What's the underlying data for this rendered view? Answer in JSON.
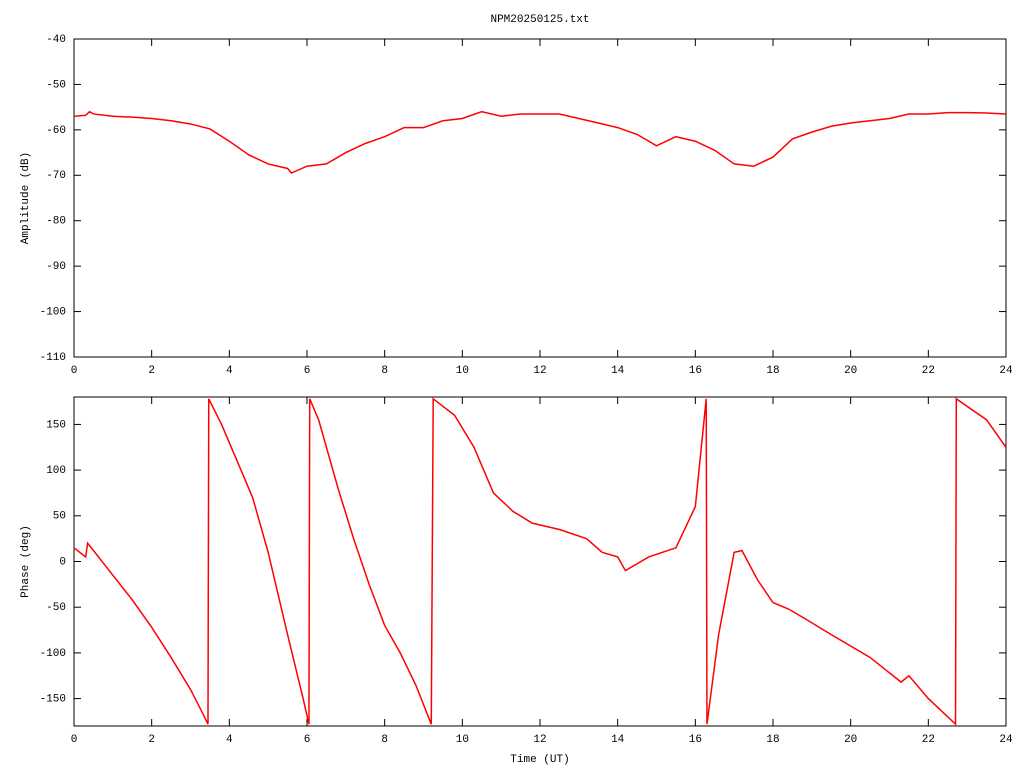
{
  "chart_data": [
    {
      "type": "line",
      "title": "NPM20250125.txt",
      "ylabel": "Amplitude (dB)",
      "color": "#ff0000",
      "xlim": [
        0,
        24
      ],
      "xticks": [
        0,
        2,
        4,
        6,
        8,
        10,
        12,
        14,
        16,
        18,
        20,
        22,
        24
      ],
      "ylim": [
        -110,
        -40
      ],
      "yticks": [
        -110,
        -100,
        -90,
        -80,
        -70,
        -60,
        -50,
        -40
      ],
      "x": [
        0,
        0.3,
        0.4,
        0.5,
        1,
        1.5,
        2,
        2.5,
        3,
        3.5,
        4,
        4.5,
        5,
        5.5,
        5.6,
        6,
        6.5,
        7,
        7.5,
        8,
        8.5,
        9,
        9.5,
        10,
        10.5,
        11,
        11.5,
        12,
        12.5,
        13,
        13.5,
        14,
        14.5,
        15,
        15.5,
        16,
        16.5,
        17,
        17.5,
        18,
        18.5,
        19,
        19.5,
        20,
        20.5,
        21,
        21.5,
        22,
        22.5,
        23,
        23.5,
        24
      ],
      "values": [
        -57,
        -56.8,
        -56,
        -56.5,
        -57,
        -57.2,
        -57.5,
        -58,
        -58.7,
        -59.8,
        -62.5,
        -65.5,
        -67.5,
        -68.5,
        -69.5,
        -68,
        -67.5,
        -65,
        -63,
        -61.5,
        -59.5,
        -59.5,
        -58,
        -57.5,
        -56,
        -57,
        -56.5,
        -56.5,
        -56.5,
        -57.5,
        -58.5,
        -59.5,
        -61,
        -63.5,
        -61.5,
        -62.5,
        -64.5,
        -67.5,
        -68,
        -66,
        -62,
        -60.5,
        -59.2,
        -58.5,
        -58,
        -57.5,
        -56.5,
        -56.5,
        -56.2,
        -56.2,
        -56.3,
        -56.5
      ]
    },
    {
      "type": "line",
      "xlabel": "Time (UT)",
      "ylabel": "Phase (deg)",
      "color": "#ff0000",
      "xlim": [
        0,
        24
      ],
      "xticks": [
        0,
        2,
        4,
        6,
        8,
        10,
        12,
        14,
        16,
        18,
        20,
        22,
        24
      ],
      "ylim": [
        -180,
        180
      ],
      "yticks": [
        -150,
        -100,
        -50,
        0,
        50,
        100,
        150
      ],
      "x": [
        0,
        0.3,
        0.35,
        0.5,
        1,
        1.5,
        2,
        2.5,
        3,
        3.3,
        3.45,
        3.47,
        3.8,
        4.2,
        4.6,
        5,
        5.5,
        5.9,
        6.05,
        6.07,
        6.3,
        6.8,
        7.2,
        7.6,
        8,
        8.4,
        8.8,
        9.2,
        9.25,
        9.8,
        10.3,
        10.8,
        11.3,
        11.8,
        12.5,
        13.2,
        13.6,
        14,
        14.2,
        14.8,
        15.5,
        16,
        16.28,
        16.3,
        16.6,
        17,
        17.2,
        17.6,
        18,
        18.4,
        18.8,
        19.5,
        20.5,
        21.3,
        21.5,
        22,
        22.7,
        22.72,
        23.5,
        24
      ],
      "values": [
        15,
        5,
        20,
        12,
        -15,
        -42,
        -72,
        -105,
        -140,
        -165,
        -178,
        178,
        150,
        110,
        70,
        10,
        -80,
        -150,
        -178,
        178,
        155,
        80,
        25,
        -25,
        -70,
        -100,
        -135,
        -178,
        178,
        160,
        125,
        75,
        55,
        42,
        35,
        25,
        10,
        5,
        -10,
        5,
        15,
        60,
        178,
        -178,
        -80,
        10,
        12,
        -20,
        -45,
        -52,
        -62,
        -80,
        -105,
        -132,
        -125,
        -150,
        -178,
        178,
        155,
        125
      ]
    }
  ]
}
